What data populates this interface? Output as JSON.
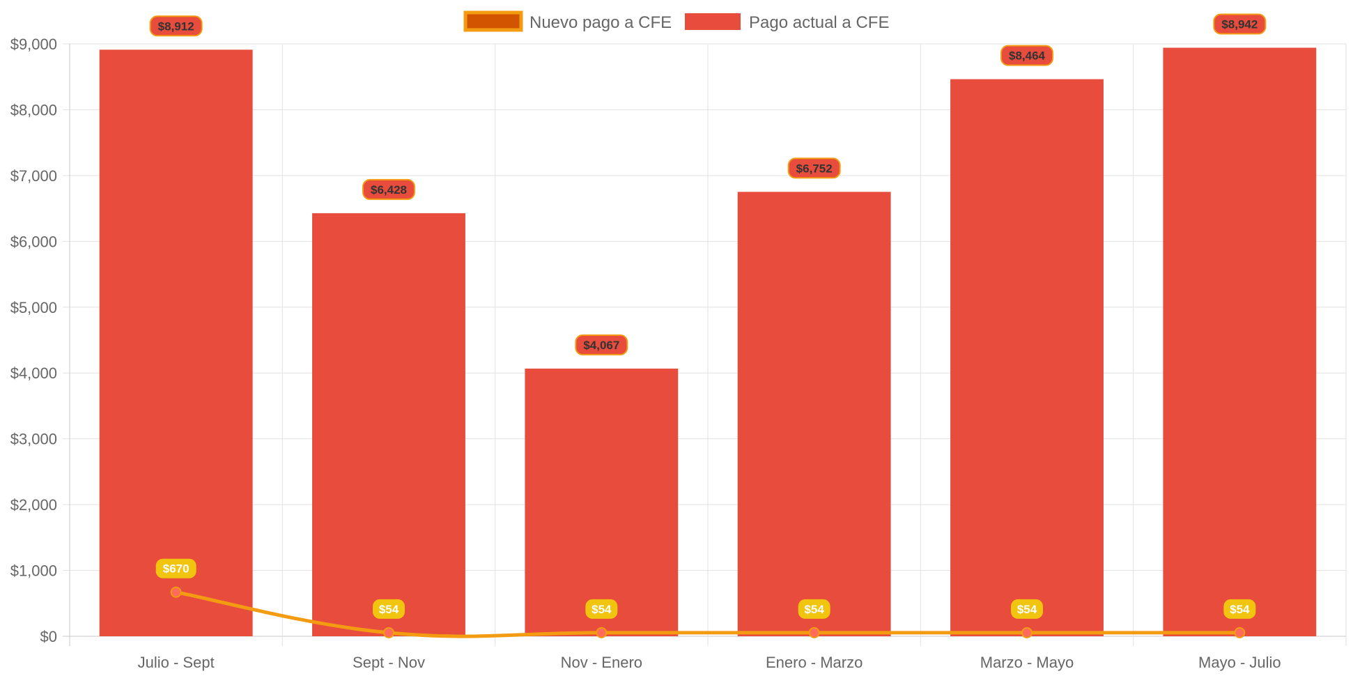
{
  "chart_data": {
    "type": "bar",
    "categories": [
      "Julio - Sept",
      "Sept - Nov",
      "Nov - Enero",
      "Enero - Marzo",
      "Marzo - Mayo",
      "Mayo - Julio"
    ],
    "series": [
      {
        "name": "Nuevo pago a CFE",
        "kind": "line",
        "values": [
          670,
          54,
          54,
          54,
          54,
          54
        ],
        "data_labels": [
          "$670",
          "$54",
          "$54",
          "$54",
          "$54",
          "$54"
        ],
        "color": "#f39c12",
        "fill_color": "#d35400",
        "point_color": "#ff6b5b",
        "label_bg": "#f1c40f"
      },
      {
        "name": "Pago actual a CFE",
        "kind": "bar",
        "values": [
          8912,
          6428,
          4067,
          6752,
          8464,
          8942
        ],
        "data_labels": [
          "$8,912",
          "$6,428",
          "$4,067",
          "$6,752",
          "$8,464",
          "$8,942"
        ],
        "color": "#e74c3c",
        "label_border": "#f39c12"
      }
    ],
    "y_ticks": [
      "$0",
      "$1,000",
      "$2,000",
      "$3,000",
      "$4,000",
      "$5,000",
      "$6,000",
      "$7,000",
      "$8,000",
      "$9,000"
    ],
    "ylim": [
      0,
      9000
    ],
    "title": "",
    "xlabel": "",
    "ylabel": "",
    "grid": true,
    "legend_position": "top-center"
  }
}
